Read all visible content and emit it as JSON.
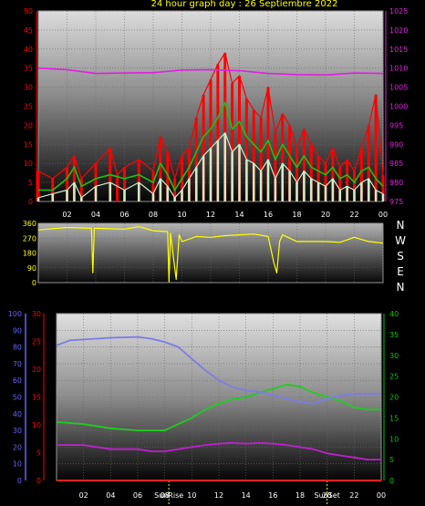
{
  "title": "24 hour graph day : 26 Septiembre 2022",
  "colors": {
    "wind_speed": "#ff0000",
    "wind_avg": "#19c40c",
    "wind_min": "#c8f0c8",
    "pressure": "#e020e0",
    "direction": "#ffff00",
    "humidity": "#7c7ce8",
    "dewpoint_temp": "#20cc20",
    "temp": "#c020d0",
    "rain": "#ff2020",
    "sun_marker": "#ffff00",
    "axis_left_top": "#ff0000",
    "axis_right_top": "#e020e0",
    "axis_humidity": "#6464ff",
    "axis_temp": "#ff0000",
    "axis_right_bottom": "#00c800"
  },
  "compass": [
    "N",
    "W",
    "S",
    "E",
    "N"
  ],
  "sun_labels": [
    "SunRise",
    "SunSet"
  ],
  "chart_data": [
    {
      "type": "line",
      "name": "wind-pressure",
      "x_ticks": [
        "02",
        "04",
        "06",
        "08",
        "10",
        "12",
        "14",
        "16",
        "18",
        "20",
        "22",
        "00"
      ],
      "xlim": [
        0,
        24
      ],
      "y_left_ticks": [
        "0",
        "5",
        "10",
        "15",
        "20",
        "25",
        "30",
        "35",
        "40",
        "45",
        "50"
      ],
      "ylim_left": [
        0,
        50
      ],
      "y_right_ticks": [
        "975",
        "980",
        "985",
        "990",
        "995",
        "1000",
        "1005",
        "1010",
        "1015",
        "1020",
        "1025"
      ],
      "ylim_right": [
        975,
        1025
      ],
      "wind_max": [
        [
          0,
          8
        ],
        [
          1,
          6
        ],
        [
          2,
          9
        ],
        [
          2.5,
          12
        ],
        [
          3,
          6
        ],
        [
          4,
          10
        ],
        [
          5,
          14
        ],
        [
          5.5,
          7
        ],
        [
          6,
          9
        ],
        [
          7,
          11
        ],
        [
          8,
          8
        ],
        [
          8.5,
          17
        ],
        [
          9,
          13
        ],
        [
          9.5,
          6
        ],
        [
          10,
          12
        ],
        [
          10.5,
          14
        ],
        [
          11,
          22
        ],
        [
          11.5,
          28
        ],
        [
          12,
          32
        ],
        [
          12.5,
          36
        ],
        [
          13,
          39
        ],
        [
          13.5,
          31
        ],
        [
          14,
          33
        ],
        [
          14.5,
          27
        ],
        [
          15,
          24
        ],
        [
          15.5,
          22
        ],
        [
          16,
          30
        ],
        [
          16.5,
          18
        ],
        [
          17,
          23
        ],
        [
          17.5,
          20
        ],
        [
          18,
          14
        ],
        [
          18.5,
          19
        ],
        [
          19,
          15
        ],
        [
          19.5,
          12
        ],
        [
          20,
          10
        ],
        [
          20.5,
          14
        ],
        [
          21,
          9
        ],
        [
          21.5,
          11
        ],
        [
          22,
          8
        ],
        [
          22.5,
          14
        ],
        [
          23,
          20
        ],
        [
          23.5,
          28
        ],
        [
          24,
          7
        ]
      ],
      "wind_avg": [
        [
          0,
          3
        ],
        [
          1,
          3
        ],
        [
          2,
          6
        ],
        [
          2.5,
          9
        ],
        [
          3,
          4
        ],
        [
          4,
          6
        ],
        [
          5,
          7
        ],
        [
          6,
          6
        ],
        [
          7,
          7
        ],
        [
          8,
          5
        ],
        [
          8.5,
          10
        ],
        [
          9,
          7
        ],
        [
          9.5,
          3
        ],
        [
          10,
          6
        ],
        [
          10.5,
          9
        ],
        [
          11,
          13
        ],
        [
          11.5,
          17
        ],
        [
          12,
          19
        ],
        [
          12.5,
          22
        ],
        [
          13,
          26
        ],
        [
          13.5,
          19
        ],
        [
          14,
          21
        ],
        [
          14.5,
          17
        ],
        [
          15,
          15
        ],
        [
          15.5,
          13
        ],
        [
          16,
          16
        ],
        [
          16.5,
          11
        ],
        [
          17,
          15
        ],
        [
          17.5,
          12
        ],
        [
          18,
          9
        ],
        [
          18.5,
          12
        ],
        [
          19,
          9
        ],
        [
          19.5,
          8
        ],
        [
          20,
          7
        ],
        [
          20.5,
          9
        ],
        [
          21,
          6
        ],
        [
          21.5,
          7
        ],
        [
          22,
          5
        ],
        [
          22.5,
          8
        ],
        [
          23,
          9
        ],
        [
          23.5,
          6
        ],
        [
          24,
          4
        ]
      ],
      "wind_min": [
        [
          0,
          1
        ],
        [
          1,
          2
        ],
        [
          2,
          3
        ],
        [
          2.5,
          5
        ],
        [
          3,
          1
        ],
        [
          4,
          4
        ],
        [
          5,
          5
        ],
        [
          6,
          3
        ],
        [
          7,
          5
        ],
        [
          8,
          2
        ],
        [
          8.5,
          6
        ],
        [
          9,
          4
        ],
        [
          9.5,
          1
        ],
        [
          10,
          3
        ],
        [
          10.5,
          6
        ],
        [
          11,
          9
        ],
        [
          11.5,
          12
        ],
        [
          12,
          14
        ],
        [
          12.5,
          16
        ],
        [
          13,
          18
        ],
        [
          13.5,
          13
        ],
        [
          14,
          15
        ],
        [
          14.5,
          11
        ],
        [
          15,
          10
        ],
        [
          15.5,
          8
        ],
        [
          16,
          11
        ],
        [
          16.5,
          6
        ],
        [
          17,
          10
        ],
        [
          17.5,
          8
        ],
        [
          18,
          5
        ],
        [
          18.5,
          8
        ],
        [
          19,
          6
        ],
        [
          19.5,
          5
        ],
        [
          20,
          4
        ],
        [
          20.5,
          6
        ],
        [
          21,
          3
        ],
        [
          21.5,
          4
        ],
        [
          22,
          3
        ],
        [
          22.5,
          5
        ],
        [
          23,
          6
        ],
        [
          23.5,
          3
        ],
        [
          24,
          2
        ]
      ],
      "pressure": [
        [
          0,
          1010
        ],
        [
          2,
          1009.6
        ],
        [
          4,
          1008.6
        ],
        [
          6,
          1008.7
        ],
        [
          8,
          1008.8
        ],
        [
          10,
          1009.5
        ],
        [
          12,
          1009.6
        ],
        [
          14,
          1009.3
        ],
        [
          16,
          1008.6
        ],
        [
          18,
          1008.3
        ],
        [
          20,
          1008.2
        ],
        [
          22,
          1008.7
        ],
        [
          24,
          1008.6
        ]
      ]
    },
    {
      "type": "line",
      "name": "wind-direction",
      "y_ticks": [
        "0",
        "90",
        "180",
        "270",
        "360"
      ],
      "ylim": [
        0,
        360
      ],
      "direction": [
        [
          0,
          320
        ],
        [
          2,
          335
        ],
        [
          3.7,
          330
        ],
        [
          3.8,
          60
        ],
        [
          3.9,
          330
        ],
        [
          6,
          325
        ],
        [
          7,
          340
        ],
        [
          8,
          315
        ],
        [
          9,
          310
        ],
        [
          9.1,
          5
        ],
        [
          9.2,
          300
        ],
        [
          9.6,
          20
        ],
        [
          9.8,
          290
        ],
        [
          10,
          250
        ],
        [
          11,
          280
        ],
        [
          12,
          275
        ],
        [
          13,
          285
        ],
        [
          14,
          290
        ],
        [
          15,
          295
        ],
        [
          16,
          280
        ],
        [
          16.4,
          120
        ],
        [
          16.6,
          60
        ],
        [
          16.8,
          250
        ],
        [
          17,
          290
        ],
        [
          18,
          250
        ],
        [
          20,
          250
        ],
        [
          21,
          245
        ],
        [
          22,
          275
        ],
        [
          23,
          250
        ],
        [
          24,
          240
        ]
      ]
    },
    {
      "type": "line",
      "name": "humidity-temperature",
      "y_hum_ticks": [
        "0",
        "10",
        "20",
        "30",
        "40",
        "50",
        "60",
        "70",
        "80",
        "90",
        "100"
      ],
      "ylim_hum": [
        0,
        100
      ],
      "y_temp_ticks": [
        "0",
        "5",
        "10",
        "15",
        "20",
        "25",
        "30"
      ],
      "ylim_temp": [
        0,
        30
      ],
      "y_right_ticks": [
        "0",
        "5",
        "10",
        "15",
        "20",
        "25",
        "30",
        "35",
        "40"
      ],
      "ylim_right": [
        0,
        40
      ],
      "humidity": [
        [
          0,
          81
        ],
        [
          1,
          84
        ],
        [
          2,
          84.5
        ],
        [
          4,
          85.5
        ],
        [
          6,
          86
        ],
        [
          7,
          85
        ],
        [
          8,
          83
        ],
        [
          9,
          80
        ],
        [
          10,
          73
        ],
        [
          11,
          66
        ],
        [
          12,
          60
        ],
        [
          13,
          56
        ],
        [
          14,
          54
        ],
        [
          15,
          53
        ],
        [
          16,
          51
        ],
        [
          17,
          49
        ],
        [
          18,
          47
        ],
        [
          19,
          46
        ],
        [
          20,
          49
        ],
        [
          21,
          51
        ],
        [
          22,
          52
        ],
        [
          23,
          52
        ],
        [
          24,
          52
        ]
      ],
      "dewpoint": [
        [
          0,
          14
        ],
        [
          2,
          13.5
        ],
        [
          4,
          12.5
        ],
        [
          6,
          12
        ],
        [
          7,
          12
        ],
        [
          8,
          12
        ],
        [
          9,
          13.5
        ],
        [
          10,
          15
        ],
        [
          11,
          17
        ],
        [
          12,
          18.5
        ],
        [
          13,
          19.5
        ],
        [
          14,
          20
        ],
        [
          15,
          21
        ],
        [
          16,
          22
        ],
        [
          17,
          23
        ],
        [
          18,
          22.5
        ],
        [
          19,
          21
        ],
        [
          20,
          20
        ],
        [
          21,
          19
        ],
        [
          22,
          17.5
        ],
        [
          23,
          17
        ],
        [
          24,
          17
        ]
      ],
      "temp": [
        [
          0,
          8.5
        ],
        [
          2,
          8.5
        ],
        [
          4,
          7.5
        ],
        [
          6,
          7.5
        ],
        [
          7,
          7
        ],
        [
          8,
          7
        ],
        [
          9,
          7.5
        ],
        [
          10,
          8
        ],
        [
          11,
          8.5
        ],
        [
          12,
          8.8
        ],
        [
          13,
          9
        ],
        [
          14,
          8.8
        ],
        [
          15,
          9
        ],
        [
          16,
          8.8
        ],
        [
          17,
          8.5
        ],
        [
          18,
          8
        ],
        [
          19,
          7.5
        ],
        [
          20,
          6.5
        ],
        [
          21,
          6
        ],
        [
          22,
          5.5
        ],
        [
          23,
          5
        ],
        [
          24,
          5
        ]
      ],
      "rain": [
        [
          0,
          0
        ],
        [
          24,
          0
        ]
      ],
      "sunrise_hour": 8.3,
      "sunset_hour": 20.0
    }
  ]
}
